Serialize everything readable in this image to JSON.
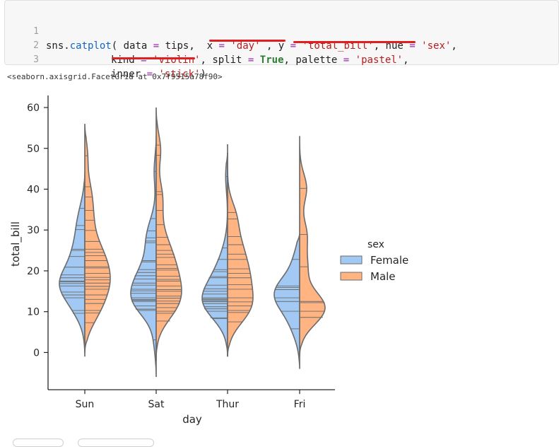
{
  "code": {
    "line_numbers": [
      "1",
      "2",
      "3"
    ],
    "l1": {
      "a": "sns.",
      "fn": "catplot",
      "b": "( data ",
      "eq1": "=",
      "c": " tips,  x ",
      "eq2": "=",
      "d": " ",
      "s1": "'day'",
      "e": " , y ",
      "eq3": "=",
      "f": " ",
      "s2": "'total_bill'",
      "g": ", hue ",
      "eq4": "=",
      "h": " ",
      "s3": "'sex'",
      "i": ","
    },
    "l2": {
      "a": "kind ",
      "eq1": "=",
      "b": " ",
      "s1": "'violin'",
      "c": ", split ",
      "eq2": "=",
      "d": " ",
      "kw": "True",
      "e": ", palette ",
      "eq3": "=",
      "f": " ",
      "s2": "'pastel'",
      "g": ","
    },
    "l3": {
      "a": "inner ",
      "eq1": "=",
      "b": " ",
      "s1": "'stick'",
      "c": ")"
    }
  },
  "output_repr": "<seaborn.axisgrid.FacetGrid at 0x7f9515a78f90>",
  "colors": {
    "female": "#a1c9f4",
    "male": "#ffb482",
    "edge": "#6b6b6b",
    "highlight": "#e02020"
  },
  "chart_data": {
    "type": "violin",
    "split": true,
    "inner": "stick",
    "categories": [
      "Sun",
      "Sat",
      "Thur",
      "Fri"
    ],
    "xlabel": "day",
    "ylabel": "total_bill",
    "yticks": [
      "0",
      "10",
      "20",
      "30",
      "40",
      "50",
      "60"
    ],
    "ylim": [
      -9,
      65
    ],
    "legend": {
      "title": "sex",
      "entries": [
        "Female",
        "Male"
      ],
      "placement": "right"
    },
    "series": [
      {
        "name": "Female",
        "range": [
          [
            -1,
            44
          ],
          [
            -6,
            53
          ],
          [
            -1,
            49
          ],
          [
            -4,
            29
          ]
        ],
        "peak": [
          17,
          16,
          13,
          14
        ],
        "samples": [
          [
            9.6,
            10.3,
            13.4,
            14.1,
            14.8,
            16.3,
            16.9,
            17.3,
            17.5,
            18.3,
            19.0,
            20.9,
            23.5,
            25.0,
            25.3,
            30.1,
            31.1,
            35.3
          ],
          [
            3.1,
            10.3,
            10.6,
            10.6,
            11.4,
            12.5,
            12.8,
            13.0,
            13.4,
            14.5,
            15.1,
            15.5,
            16.5,
            17.0,
            18.0,
            18.8,
            19.6,
            20.3,
            22.2,
            22.5,
            26.9,
            27.3,
            28.1,
            29.8,
            32.8,
            44.3
          ],
          [
            8.3,
            8.5,
            10.1,
            10.7,
            11.2,
            12.0,
            12.5,
            12.7,
            13.0,
            13.1,
            13.4,
            14.3,
            15.0,
            15.6,
            16.5,
            18.3,
            18.6,
            19.8,
            20.3,
            22.8,
            25.6,
            43.1
          ],
          [
            5.8,
            10.1,
            12.5,
            13.4,
            15.4,
            15.9,
            16.3,
            22.8
          ]
        ]
      },
      {
        "name": "Male",
        "range": [
          [
            0,
            56
          ],
          [
            -2,
            60
          ],
          [
            -1,
            51
          ],
          [
            -1,
            53
          ]
        ],
        "peak": [
          18,
          16,
          16,
          10
        ],
        "samples": [
          [
            7.3,
            9.7,
            10.3,
            12.0,
            13.0,
            14.1,
            15.5,
            16.2,
            17.0,
            17.8,
            18.4,
            19.4,
            20.7,
            21.0,
            22.5,
            23.7,
            24.5,
            25.3,
            27.2,
            29.9,
            32.4,
            34.8,
            38.1,
            40.6,
            48.2
          ],
          [
            7.7,
            9.6,
            10.1,
            11.0,
            12.0,
            12.6,
            13.3,
            13.8,
            15.0,
            15.4,
            16.3,
            17.5,
            17.9,
            18.7,
            20.2,
            20.6,
            21.5,
            23.3,
            24.1,
            25.0,
            26.4,
            28.2,
            31.3,
            34.8,
            38.7,
            39.4,
            48.3,
            50.8
          ],
          [
            7.5,
            9.8,
            10.3,
            11.4,
            12.4,
            13.4,
            15.5,
            16.6,
            18.3,
            19.4,
            20.5,
            22.8,
            24.1,
            26.4,
            28.4,
            32.7,
            34.3
          ],
          [
            8.6,
            10.1,
            12.2,
            12.5,
            21.0,
            28.9,
            40.2
          ]
        ]
      }
    ]
  }
}
